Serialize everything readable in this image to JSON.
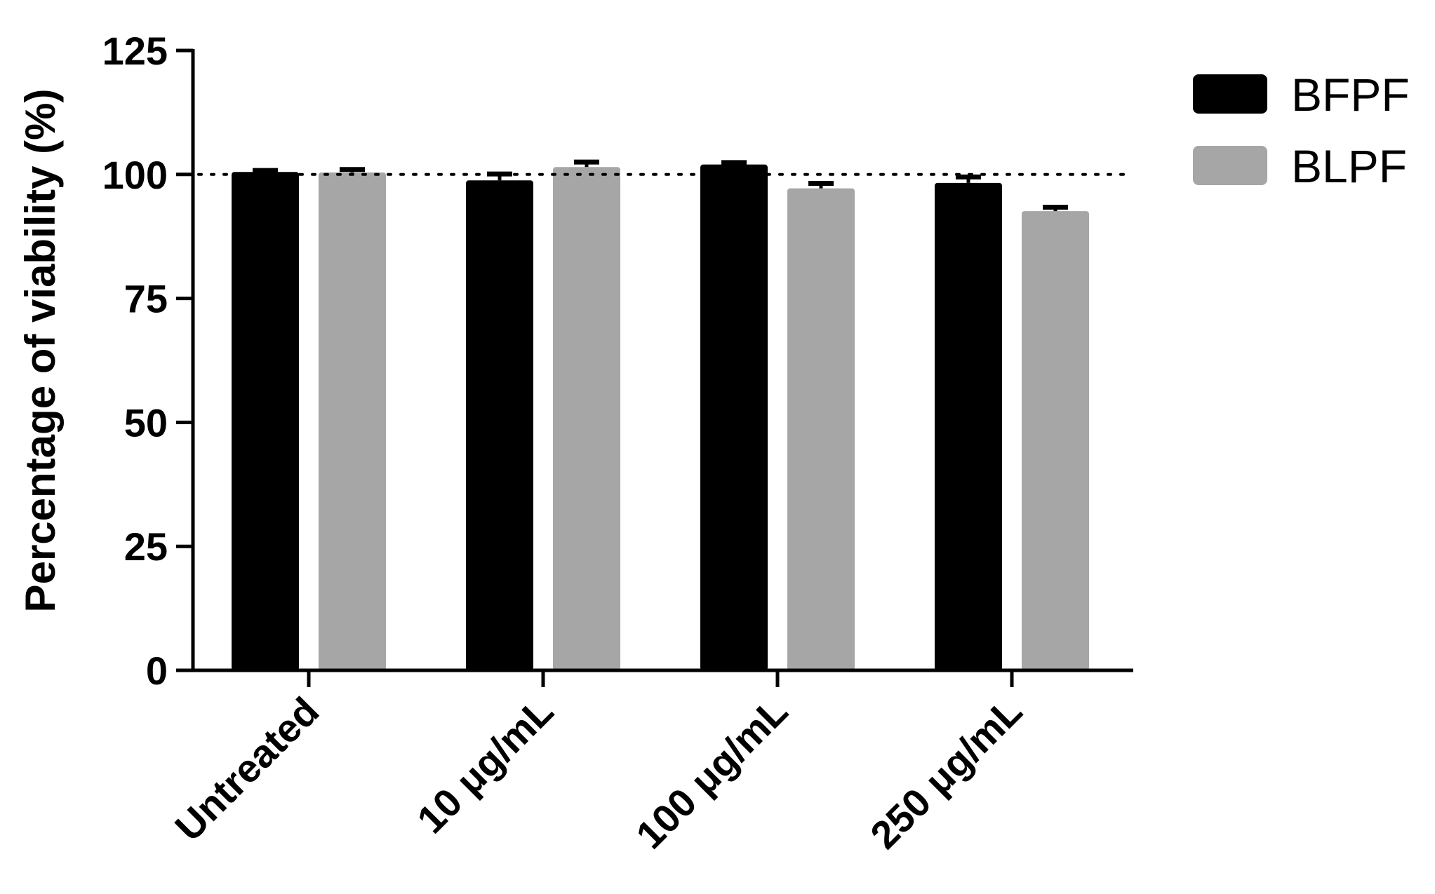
{
  "chart_data": {
    "type": "bar",
    "title": "",
    "xlabel": "",
    "ylabel": "Percentage of viability (%)",
    "ylim": [
      0,
      125
    ],
    "yticks": [
      "0",
      "25",
      "50",
      "75",
      "100",
      "125"
    ],
    "categories": [
      "Untreated",
      "10 μg/mL",
      "100 μg/mL",
      "250 μg/mL"
    ],
    "series": [
      {
        "name": "BFPF",
        "color": "#000000",
        "values": [
          100.5,
          98.8,
          102.0,
          98.3
        ],
        "errors": [
          0.3,
          1.3,
          0.4,
          1.2
        ]
      },
      {
        "name": "BLPF",
        "color": "#a6a6a6",
        "values": [
          100.4,
          101.5,
          97.2,
          92.6
        ],
        "errors": [
          0.6,
          1.0,
          1.0,
          0.8
        ]
      }
    ],
    "reference_line": {
      "y": 100,
      "style": "dotted"
    },
    "grid": false,
    "legend_position": "top-right"
  }
}
